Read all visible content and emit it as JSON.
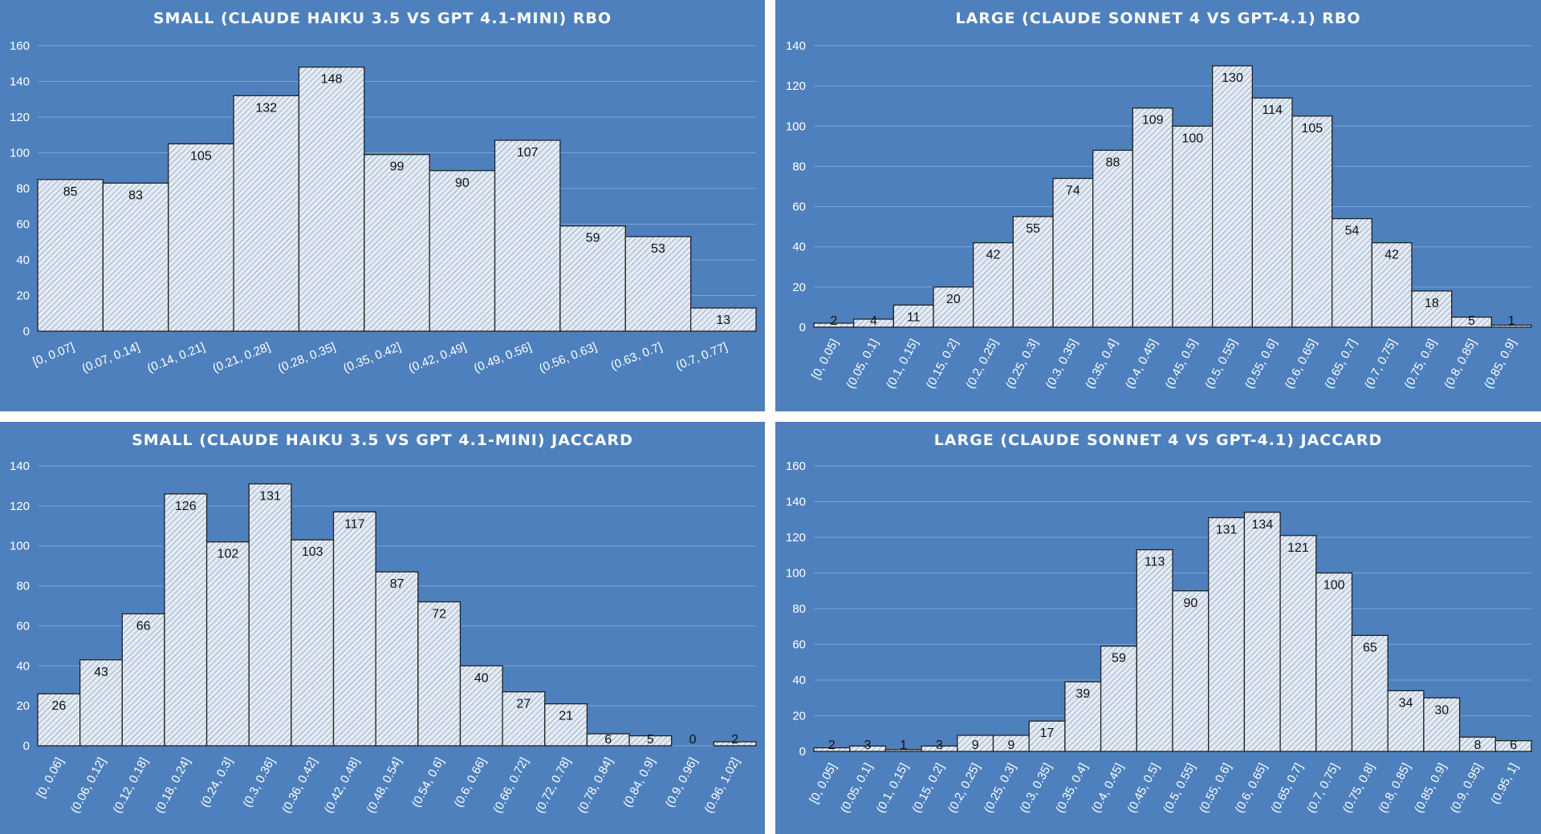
{
  "colors": {
    "background": "#4e80bd",
    "bar_fill": "#e3ecf6",
    "bar_hatch": "#6f7f96",
    "bar_stroke": "#222222",
    "grid": "#7fa3d2",
    "text": "#ffffff"
  },
  "chart_data": [
    {
      "type": "bar",
      "title": "SMALL (CLAUDE HAIKU 3.5 VS GPT 4.1-MINI) RBO",
      "categories": [
        "[0, 0.07]",
        "(0.07, 0.14]",
        "(0.14, 0.21]",
        "(0.21, 0.28]",
        "(0.28, 0.35]",
        "(0.35, 0.42]",
        "(0.42, 0.49]",
        "(0.49, 0.56]",
        "(0.56, 0.63]",
        "(0.63, 0.7]",
        "(0.7, 0.77]"
      ],
      "values": [
        85,
        83,
        105,
        132,
        148,
        99,
        90,
        107,
        59,
        53,
        13
      ],
      "ylim": [
        0,
        160
      ],
      "yticks": [
        0,
        20,
        40,
        60,
        80,
        100,
        120,
        140,
        160
      ],
      "xlabel": "",
      "ylabel": "",
      "grid": true
    },
    {
      "type": "bar",
      "title": "LARGE (CLAUDE SONNET 4 VS GPT-4.1) RBO",
      "categories": [
        "[0, 0.05]",
        "(0.05, 0.1]",
        "(0.1, 0.15]",
        "(0.15, 0.2]",
        "(0.2, 0.25]",
        "(0.25, 0.3]",
        "(0.3, 0.35]",
        "(0.35, 0.4]",
        "(0.4, 0.45]",
        "(0.45, 0.5]",
        "(0.5, 0.55]",
        "(0.55, 0.6]",
        "(0.6, 0.65]",
        "(0.65, 0.7]",
        "(0.7, 0.75]",
        "(0.75, 0.8]",
        "(0.8, 0.85]",
        "(0.85, 0.9]"
      ],
      "values": [
        2,
        4,
        11,
        20,
        42,
        55,
        74,
        88,
        109,
        100,
        130,
        114,
        105,
        54,
        42,
        18,
        5,
        1
      ],
      "ylim": [
        0,
        140
      ],
      "yticks": [
        0,
        20,
        40,
        60,
        80,
        100,
        120,
        140
      ],
      "xlabel": "",
      "ylabel": "",
      "grid": true
    },
    {
      "type": "bar",
      "title": "SMALL (CLAUDE HAIKU 3.5 VS GPT 4.1-MINI) JACCARD",
      "categories": [
        "[0, 0.06]",
        "(0.06, 0.12]",
        "(0.12, 0.18]",
        "(0.18, 0.24]",
        "(0.24, 0.3]",
        "(0.3, 0.36]",
        "(0.36, 0.42]",
        "(0.42, 0.48]",
        "(0.48, 0.54]",
        "(0.54, 0.6]",
        "(0.6, 0.66]",
        "(0.66, 0.72]",
        "(0.72, 0.78]",
        "(0.78, 0.84]",
        "(0.84, 0.9]",
        "(0.9, 0.96]",
        "(0.96, 1.02]"
      ],
      "values": [
        26,
        43,
        66,
        126,
        102,
        131,
        103,
        117,
        87,
        72,
        40,
        27,
        21,
        6,
        5,
        0,
        2
      ],
      "ylim": [
        0,
        140
      ],
      "yticks": [
        0,
        20,
        40,
        60,
        80,
        100,
        120,
        140
      ],
      "xlabel": "",
      "ylabel": "",
      "grid": true
    },
    {
      "type": "bar",
      "title": "LARGE (CLAUDE SONNET 4 VS GPT-4.1) JACCARD",
      "categories": [
        "[0, 0.05]",
        "(0.05, 0.1]",
        "(0.1, 0.15]",
        "(0.15, 0.2]",
        "(0.2, 0.25]",
        "(0.25, 0.3]",
        "(0.3, 0.35]",
        "(0.35, 0.4]",
        "(0.4, 0.45]",
        "(0.45, 0.5]",
        "(0.5, 0.55]",
        "(0.55, 0.6]",
        "(0.6, 0.65]",
        "(0.65, 0.7]",
        "(0.7, 0.75]",
        "(0.75, 0.8]",
        "(0.8, 0.85]",
        "(0.85, 0.9]",
        "(0.9, 0.95]",
        "(0.95, 1]"
      ],
      "values": [
        2,
        3,
        1,
        3,
        9,
        9,
        17,
        39,
        59,
        113,
        90,
        131,
        134,
        121,
        100,
        65,
        34,
        30,
        8,
        6
      ],
      "ylim": [
        0,
        160
      ],
      "yticks": [
        0,
        20,
        40,
        60,
        80,
        100,
        120,
        140,
        160
      ],
      "xlabel": "",
      "ylabel": "",
      "grid": true
    }
  ]
}
